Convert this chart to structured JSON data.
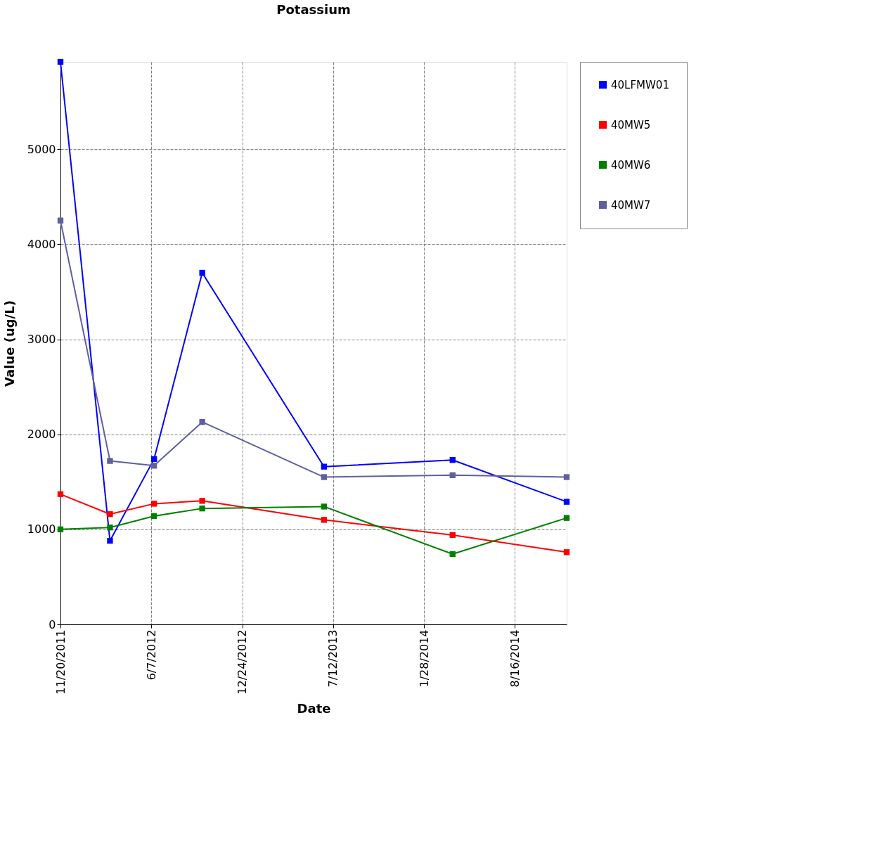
{
  "chart_data": {
    "type": "line",
    "title": "Potassium",
    "xlabel": "Date",
    "ylabel": "Value (ug/L)",
    "x": [
      "2011-11-20",
      "2012-03-08",
      "2012-06-13",
      "2012-09-27",
      "2013-06-22",
      "2014-04-01",
      "2014-12-08"
    ],
    "series": [
      {
        "name": "40LFMW01",
        "color": "#0000ff",
        "values": [
          5920,
          880,
          1740,
          3700,
          1660,
          1730,
          1290
        ]
      },
      {
        "name": "40MW5",
        "color": "#ff0000",
        "values": [
          1370,
          1160,
          1270,
          1300,
          1100,
          940,
          760
        ]
      },
      {
        "name": "40MW6",
        "color": "#008000",
        "values": [
          1000,
          1020,
          1140,
          1220,
          1240,
          740,
          1120
        ]
      },
      {
        "name": "40MW7",
        "color": "#5f5f9f",
        "values": [
          4250,
          1720,
          1670,
          2130,
          1550,
          1570,
          1550
        ]
      }
    ],
    "xlim": [
      "2011-11-20",
      "2014-12-08"
    ],
    "xticks": [
      {
        "value": "2011-11-20",
        "label": "11/20/2011"
      },
      {
        "value": "2012-06-07",
        "label": "6/7/2012"
      },
      {
        "value": "2012-12-24",
        "label": "12/24/2012"
      },
      {
        "value": "2013-07-12",
        "label": "7/12/2013"
      },
      {
        "value": "2014-01-28",
        "label": "1/28/2014"
      },
      {
        "value": "2014-08-16",
        "label": "8/16/2014"
      }
    ],
    "ylim": [
      0,
      5920
    ],
    "yticks": [
      0,
      1000,
      2000,
      3000,
      4000,
      5000
    ],
    "grid": true,
    "legend": "right",
    "marker": "square",
    "line_style": "solid"
  }
}
